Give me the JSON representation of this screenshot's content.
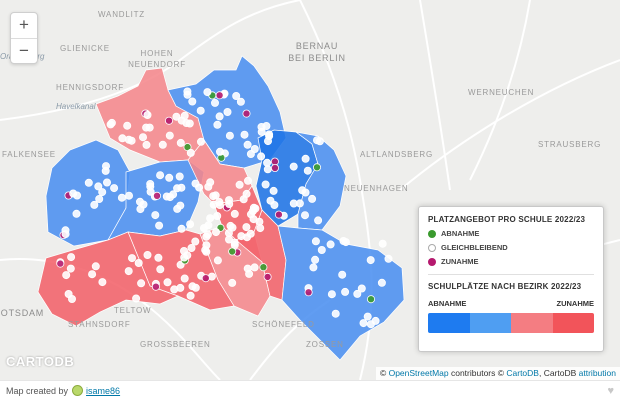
{
  "zoom": {
    "in_label": "+",
    "out_label": "−"
  },
  "places": [
    {
      "name": "Wandlitz",
      "cls": ""
    },
    {
      "name": "Glienicke",
      "cls": ""
    },
    {
      "name": "Hohen Neuendorf",
      "cls": ""
    },
    {
      "name": "Bernau bei Berlin",
      "cls": "big"
    },
    {
      "name": "Hennigsdorf",
      "cls": ""
    },
    {
      "name": "Werneuchen",
      "cls": ""
    },
    {
      "name": "Falkensee",
      "cls": ""
    },
    {
      "name": "Altlandsberg",
      "cls": ""
    },
    {
      "name": "Strausberg",
      "cls": ""
    },
    {
      "name": "Neuenhagen",
      "cls": ""
    },
    {
      "name": "Potsdam",
      "cls": "big"
    },
    {
      "name": "Teltow",
      "cls": ""
    },
    {
      "name": "Stahnsdorf",
      "cls": ""
    },
    {
      "name": "Schönefeld",
      "cls": ""
    },
    {
      "name": "Grossbeeren",
      "cls": ""
    },
    {
      "name": "Zossen",
      "cls": ""
    }
  ],
  "water_labels": [
    "Havelkanal",
    "Oranienburg"
  ],
  "legend": {
    "title": "Platzangebot pro Schule 2022/23",
    "items": [
      {
        "label": "Abnahme",
        "color": "#3a9a2e"
      },
      {
        "label": "Gleichbleibend",
        "color": "#ffffff"
      },
      {
        "label": "Zunahme",
        "color": "#b5196e"
      }
    ],
    "bezirk_title": "Schulplätze nach Bezirk 2022/23",
    "scale_low": "Abnahme",
    "scale_high": "Zunahme",
    "scale_colors": [
      "#1e7bf0",
      "#4f9ef2",
      "#f47d82",
      "#f2545a"
    ]
  },
  "attribution": {
    "osm": "OpenStreetMap",
    "contributors": " contributors © ",
    "cartodb": "CartoDB",
    "rest": ", CartoDB ",
    "attr": "attribution"
  },
  "watermark": "CARTODB",
  "footer": {
    "prefix": "Map created by",
    "author": "isame86",
    "heart": "♥"
  },
  "colors": {
    "blue": "#4b8ff0",
    "red": "#f2626a",
    "light_red": "#f5878c",
    "dark_blue": "#1f74e6"
  }
}
